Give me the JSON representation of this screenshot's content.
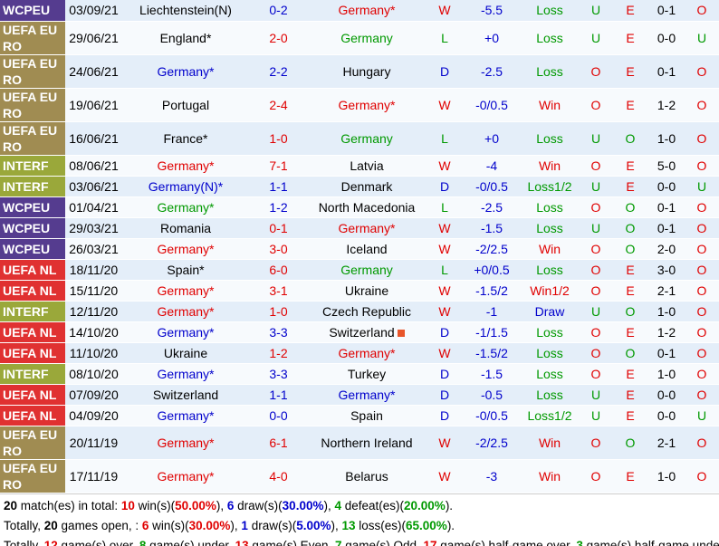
{
  "table": {
    "rows": [
      {
        "comp": "WCPEU",
        "date": "03/09/21",
        "home": "Liechtenstein(N)",
        "score": "0-2",
        "away": "Germany*",
        "result": "W",
        "handicap": "-5.5",
        "handicap_result": "Loss",
        "ou": "U",
        "oe": "E",
        "half": "0-1",
        "half_ou": "O",
        "home_color": "#000000",
        "away_color": "#e00000",
        "score_color": "#0000cc"
      },
      {
        "comp": "UEFA EURO",
        "date": "29/06/21",
        "home": "England*",
        "score": "2-0",
        "away": "Germany",
        "result": "L",
        "handicap": "+0",
        "handicap_result": "Loss",
        "ou": "U",
        "oe": "E",
        "half": "0-0",
        "half_ou": "U",
        "home_color": "#000000",
        "away_color": "#009900",
        "score_color": "#e00000"
      },
      {
        "comp": "UEFA EURO",
        "date": "24/06/21",
        "home": "Germany*",
        "score": "2-2",
        "away": "Hungary",
        "result": "D",
        "handicap": "-2.5",
        "handicap_result": "Loss",
        "ou": "O",
        "oe": "E",
        "half": "0-1",
        "half_ou": "O",
        "home_color": "#0000cc",
        "away_color": "#000000",
        "score_color": "#0000cc"
      },
      {
        "comp": "UEFA EURO",
        "date": "19/06/21",
        "home": "Portugal",
        "score": "2-4",
        "away": "Germany*",
        "result": "W",
        "handicap": "-0/0.5",
        "handicap_result": "Win",
        "ou": "O",
        "oe": "E",
        "half": "1-2",
        "half_ou": "O",
        "home_color": "#000000",
        "away_color": "#e00000",
        "score_color": "#e00000"
      },
      {
        "comp": "UEFA EURO",
        "date": "16/06/21",
        "home": "France*",
        "score": "1-0",
        "away": "Germany",
        "result": "L",
        "handicap": "+0",
        "handicap_result": "Loss",
        "ou": "U",
        "oe": "O",
        "half": "1-0",
        "half_ou": "O",
        "home_color": "#000000",
        "away_color": "#009900",
        "score_color": "#e00000"
      },
      {
        "comp": "INTERF",
        "date": "08/06/21",
        "home": "Germany*",
        "score": "7-1",
        "away": "Latvia",
        "result": "W",
        "handicap": "-4",
        "handicap_result": "Win",
        "ou": "O",
        "oe": "E",
        "half": "5-0",
        "half_ou": "O",
        "home_color": "#e00000",
        "away_color": "#000000",
        "score_color": "#e00000"
      },
      {
        "comp": "INTERF",
        "date": "03/06/21",
        "home": "Germany(N)*",
        "score": "1-1",
        "away": "Denmark",
        "result": "D",
        "handicap": "-0/0.5",
        "handicap_result": "Loss1/2",
        "ou": "U",
        "oe": "E",
        "half": "0-0",
        "half_ou": "U",
        "home_color": "#0000cc",
        "away_color": "#000000",
        "score_color": "#0000cc"
      },
      {
        "comp": "WCPEU",
        "date": "01/04/21",
        "home": "Germany*",
        "score": "1-2",
        "away": "North Macedonia",
        "result": "L",
        "handicap": "-2.5",
        "handicap_result": "Loss",
        "ou": "O",
        "oe": "O",
        "half": "0-1",
        "half_ou": "O",
        "home_color": "#009900",
        "away_color": "#000000",
        "score_color": "#0000cc"
      },
      {
        "comp": "WCPEU",
        "date": "29/03/21",
        "home": "Romania",
        "score": "0-1",
        "away": "Germany*",
        "result": "W",
        "handicap": "-1.5",
        "handicap_result": "Loss",
        "ou": "U",
        "oe": "O",
        "half": "0-1",
        "half_ou": "O",
        "home_color": "#000000",
        "away_color": "#e00000",
        "score_color": "#e00000"
      },
      {
        "comp": "WCPEU",
        "date": "26/03/21",
        "home": "Germany*",
        "score": "3-0",
        "away": "Iceland",
        "result": "W",
        "handicap": "-2/2.5",
        "handicap_result": "Win",
        "ou": "O",
        "oe": "O",
        "half": "2-0",
        "half_ou": "O",
        "home_color": "#e00000",
        "away_color": "#000000",
        "score_color": "#e00000"
      },
      {
        "comp": "UEFA NL",
        "date": "18/11/20",
        "home": "Spain*",
        "score": "6-0",
        "away": "Germany",
        "result": "L",
        "handicap": "+0/0.5",
        "handicap_result": "Loss",
        "ou": "O",
        "oe": "E",
        "half": "3-0",
        "half_ou": "O",
        "home_color": "#000000",
        "away_color": "#009900",
        "score_color": "#e00000"
      },
      {
        "comp": "UEFA NL",
        "date": "15/11/20",
        "home": "Germany*",
        "score": "3-1",
        "away": "Ukraine",
        "result": "W",
        "handicap": "-1.5/2",
        "handicap_result": "Win1/2",
        "ou": "O",
        "oe": "E",
        "half": "2-1",
        "half_ou": "O",
        "home_color": "#e00000",
        "away_color": "#000000",
        "score_color": "#e00000"
      },
      {
        "comp": "INTERF",
        "date": "12/11/20",
        "home": "Germany*",
        "score": "1-0",
        "away": "Czech Republic",
        "result": "W",
        "handicap": "-1",
        "handicap_result": "Draw",
        "ou": "U",
        "oe": "O",
        "half": "1-0",
        "half_ou": "O",
        "home_color": "#e00000",
        "away_color": "#000000",
        "score_color": "#e00000"
      },
      {
        "comp": "UEFA NL",
        "date": "14/10/20",
        "home": "Germany*",
        "score": "3-3",
        "away": "Switzerland",
        "result": "D",
        "handicap": "-1/1.5",
        "handicap_result": "Loss",
        "ou": "O",
        "oe": "E",
        "half": "1-2",
        "half_ou": "O",
        "home_color": "#0000cc",
        "away_color": "#000000",
        "score_color": "#0000cc"
      },
      {
        "comp": "UEFA NL",
        "date": "11/10/20",
        "home": "Ukraine",
        "score": "1-2",
        "away": "Germany*",
        "result": "W",
        "handicap": "-1.5/2",
        "handicap_result": "Loss",
        "ou": "O",
        "oe": "O",
        "half": "0-1",
        "half_ou": "O",
        "home_color": "#000000",
        "away_color": "#e00000",
        "score_color": "#e00000"
      },
      {
        "comp": "INTERF",
        "date": "08/10/20",
        "home": "Germany*",
        "score": "3-3",
        "away": "Turkey",
        "result": "D",
        "handicap": "-1.5",
        "handicap_result": "Loss",
        "ou": "O",
        "oe": "E",
        "half": "1-0",
        "half_ou": "O",
        "home_color": "#0000cc",
        "away_color": "#000000",
        "score_color": "#0000cc"
      },
      {
        "comp": "UEFA NL",
        "date": "07/09/20",
        "home": "Switzerland",
        "score": "1-1",
        "away": "Germany*",
        "result": "D",
        "handicap": "-0.5",
        "handicap_result": "Loss",
        "ou": "U",
        "oe": "E",
        "half": "0-0",
        "half_ou": "O",
        "home_color": "#000000",
        "away_color": "#0000cc",
        "score_color": "#0000cc"
      },
      {
        "comp": "UEFA NL",
        "date": "04/09/20",
        "home": "Germany*",
        "score": "0-0",
        "away": "Spain",
        "result": "D",
        "handicap": "-0/0.5",
        "handicap_result": "Loss1/2",
        "ou": "U",
        "oe": "E",
        "half": "0-0",
        "half_ou": "U",
        "home_color": "#0000cc",
        "away_color": "#000000",
        "score_color": "#0000cc"
      },
      {
        "comp": "UEFA EURO",
        "date": "20/11/19",
        "home": "Germany*",
        "score": "6-1",
        "away": "Northern Ireland",
        "result": "W",
        "handicap": "-2/2.5",
        "handicap_result": "Win",
        "ou": "O",
        "oe": "O",
        "half": "2-1",
        "half_ou": "O",
        "home_color": "#e00000",
        "away_color": "#000000",
        "score_color": "#e00000"
      },
      {
        "comp": "UEFA EURO",
        "date": "17/11/19",
        "home": "Germany*",
        "score": "4-0",
        "away": "Belarus",
        "result": "W",
        "handicap": "-3",
        "handicap_result": "Win",
        "ou": "O",
        "oe": "E",
        "half": "1-0",
        "half_ou": "O",
        "home_color": "#e00000",
        "away_color": "#000000",
        "score_color": "#e00000"
      }
    ],
    "comp_colors": {
      "WCPEU": "#553c8f",
      "UEFA EURO": "#a08c52",
      "INTERF": "#9aa83a",
      "UEFA NL": "#e03131"
    },
    "result_colors": {
      "W": "#e00000",
      "D": "#0000cc",
      "L": "#009900"
    },
    "handicap_result_colors": {
      "Win": "#e00000",
      "Win1/2": "#e00000",
      "Loss": "#009900",
      "Loss1/2": "#009900",
      "Draw": "#0000cc"
    },
    "ou_colors": {
      "U": "#009900",
      "O": "#e00000"
    },
    "oe_colors": {
      "E": "#e00000",
      "O": "#009900"
    },
    "half_ou_colors": {
      "O": "#e00000",
      "U": "#009900"
    }
  },
  "summary": {
    "lines": [
      [
        {
          "text": "20",
          "color": "#000000"
        },
        {
          "text": " match(es) in total: "
        },
        {
          "text": "10",
          "color": "#e00000"
        },
        {
          "text": " win(s)("
        },
        {
          "text": "50.00%",
          "color": "#e00000"
        },
        {
          "text": "), "
        },
        {
          "text": "6",
          "color": "#0000cc"
        },
        {
          "text": " draw(s)("
        },
        {
          "text": "30.00%",
          "color": "#0000cc"
        },
        {
          "text": "), "
        },
        {
          "text": "4",
          "color": "#009900"
        },
        {
          "text": " defeat(es)("
        },
        {
          "text": "20.00%",
          "color": "#009900"
        },
        {
          "text": ")."
        }
      ],
      [
        {
          "text": "Totally, "
        },
        {
          "text": "20",
          "color": "#000000"
        },
        {
          "text": " games open, : "
        },
        {
          "text": "6",
          "color": "#e00000"
        },
        {
          "text": " win(s)("
        },
        {
          "text": "30.00%",
          "color": "#e00000"
        },
        {
          "text": "), "
        },
        {
          "text": "1",
          "color": "#0000cc"
        },
        {
          "text": " draw(s)("
        },
        {
          "text": "5.00%",
          "color": "#0000cc"
        },
        {
          "text": "), "
        },
        {
          "text": "13",
          "color": "#009900"
        },
        {
          "text": " loss(es)("
        },
        {
          "text": "65.00%",
          "color": "#009900"
        },
        {
          "text": ")."
        }
      ],
      [
        {
          "text": "Totally, "
        },
        {
          "text": "12",
          "color": "#e00000"
        },
        {
          "text": " game(s) over, "
        },
        {
          "text": "8",
          "color": "#009900"
        },
        {
          "text": " game(s) under, "
        },
        {
          "text": "13",
          "color": "#e00000"
        },
        {
          "text": " game(s) Even, "
        },
        {
          "text": "7",
          "color": "#009900"
        },
        {
          "text": " game(s) Odd, "
        },
        {
          "text": "17",
          "color": "#e00000"
        },
        {
          "text": " game(s) half-game over, "
        },
        {
          "text": "3",
          "color": "#009900"
        },
        {
          "text": " game(s) half-game under"
        }
      ]
    ]
  }
}
